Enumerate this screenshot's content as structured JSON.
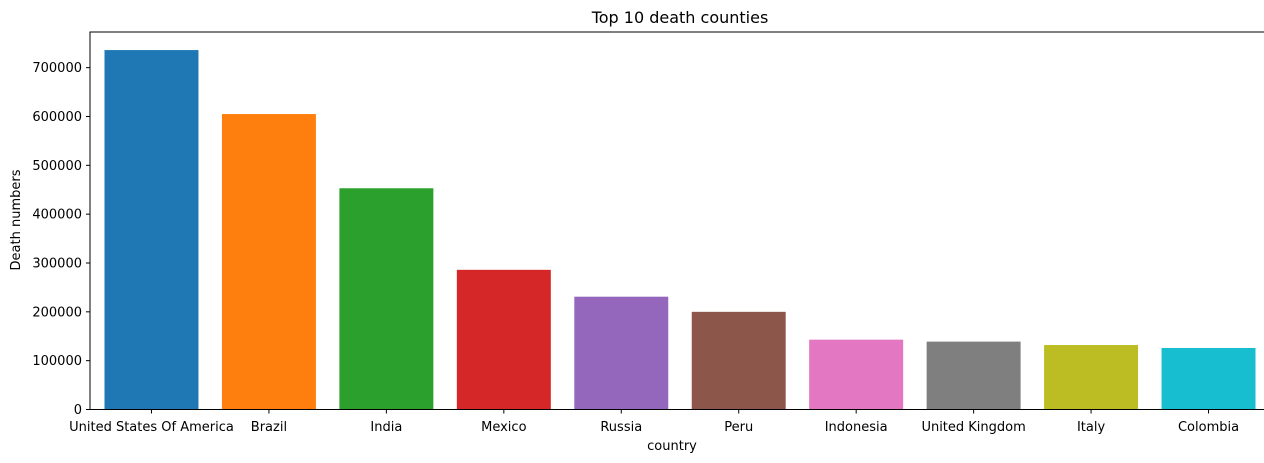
{
  "chart_data": {
    "type": "bar",
    "title": "Top 10 death counties",
    "xlabel": "country",
    "ylabel": "Death numbers",
    "categories": [
      "United States Of America",
      "Brazil",
      "India",
      "Mexico",
      "Russia",
      "Peru",
      "Indonesia",
      "United Kingdom",
      "Italy",
      "Colombia"
    ],
    "values": [
      736000,
      605000,
      453000,
      286000,
      231000,
      200000,
      143000,
      139000,
      132000,
      126000
    ],
    "colors": [
      "#1f77b4",
      "#ff7f0e",
      "#2ca02c",
      "#d62728",
      "#9467bd",
      "#8c564b",
      "#e377c2",
      "#7f7f7f",
      "#bcbd22",
      "#17becf"
    ],
    "ylim": [
      0,
      773000
    ],
    "yticks": [
      0,
      100000,
      200000,
      300000,
      400000,
      500000,
      600000,
      700000
    ],
    "grid": false,
    "legend": "none"
  }
}
